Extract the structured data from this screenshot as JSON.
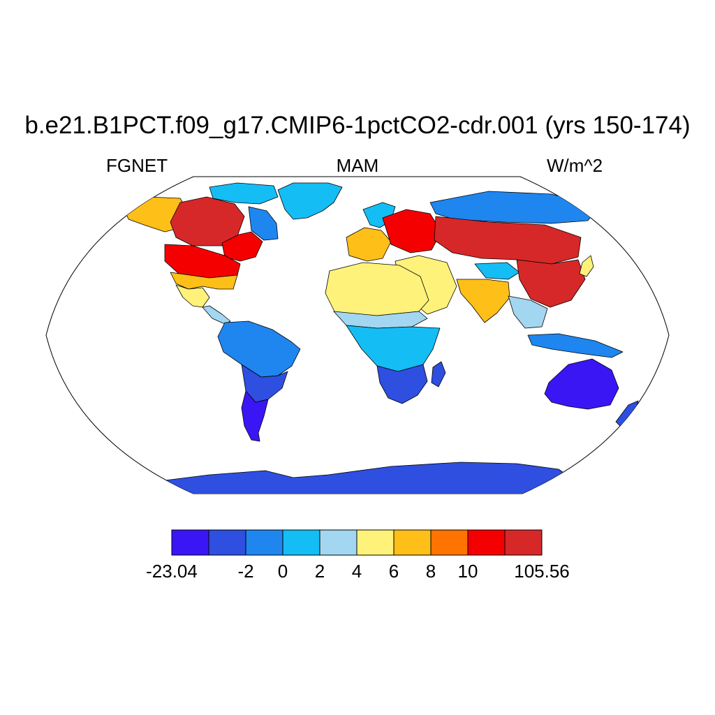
{
  "title": "b.e21.B1PCT.f09_g17.CMIP6-1pctCO2-cdr.001 (yrs 150-174)",
  "variable": "FGNET",
  "season": "MAM",
  "units": "W/m^2",
  "colorbar": {
    "colors": [
      "#3b16f5",
      "#2e4fe0",
      "#1f86f0",
      "#15bdf5",
      "#a3d6f0",
      "#fff27a",
      "#ffbf19",
      "#ff7300",
      "#f50000",
      "#d62828"
    ],
    "labels": [
      "-23.04",
      "",
      "-2",
      "0",
      "2",
      "4",
      "6",
      "8",
      "10",
      "",
      "105.56"
    ]
  },
  "map": {
    "projection": "Robinson",
    "ocean_color": "#ffffff",
    "coastline_color": "#000000",
    "regions": [
      {
        "name": "Alaska / Yukon",
        "level": 6
      },
      {
        "name": "Canada interior",
        "level": 9
      },
      {
        "name": "Eastern Canada / Great Lakes",
        "level": 8
      },
      {
        "name": "Labrador",
        "level": 2
      },
      {
        "name": "Canadian Arctic islands",
        "level": 3
      },
      {
        "name": "Greenland",
        "level": 3
      },
      {
        "name": "USA north",
        "level": 8
      },
      {
        "name": "USA south",
        "level": 6
      },
      {
        "name": "Mexico",
        "level": 5
      },
      {
        "name": "Central America",
        "level": 4
      },
      {
        "name": "South America north",
        "level": 2
      },
      {
        "name": "South America central",
        "level": 1
      },
      {
        "name": "Patagonia",
        "level": 0
      },
      {
        "name": "Europe west",
        "level": 6
      },
      {
        "name": "Scandinavia",
        "level": 3
      },
      {
        "name": "Eastern Europe / Russia west",
        "level": 8
      },
      {
        "name": "Northern Siberia",
        "level": 2
      },
      {
        "name": "Central Asia / Siberia south",
        "level": 9
      },
      {
        "name": "Middle East",
        "level": 5
      },
      {
        "name": "Tibet",
        "level": 3
      },
      {
        "name": "China",
        "level": 9
      },
      {
        "name": "India",
        "level": 6
      },
      {
        "name": "Southeast Asia",
        "level": 4
      },
      {
        "name": "Indonesia",
        "level": 2
      },
      {
        "name": "Sahara",
        "level": 5
      },
      {
        "name": "Sahel",
        "level": 4
      },
      {
        "name": "Central Africa",
        "level": 3
      },
      {
        "name": "Southern Africa",
        "level": 1
      },
      {
        "name": "Madagascar",
        "level": 1
      },
      {
        "name": "Japan",
        "level": 5
      },
      {
        "name": "Australia",
        "level": 0
      },
      {
        "name": "New Zealand",
        "level": 1
      },
      {
        "name": "Antarctica",
        "level": 1
      }
    ]
  }
}
